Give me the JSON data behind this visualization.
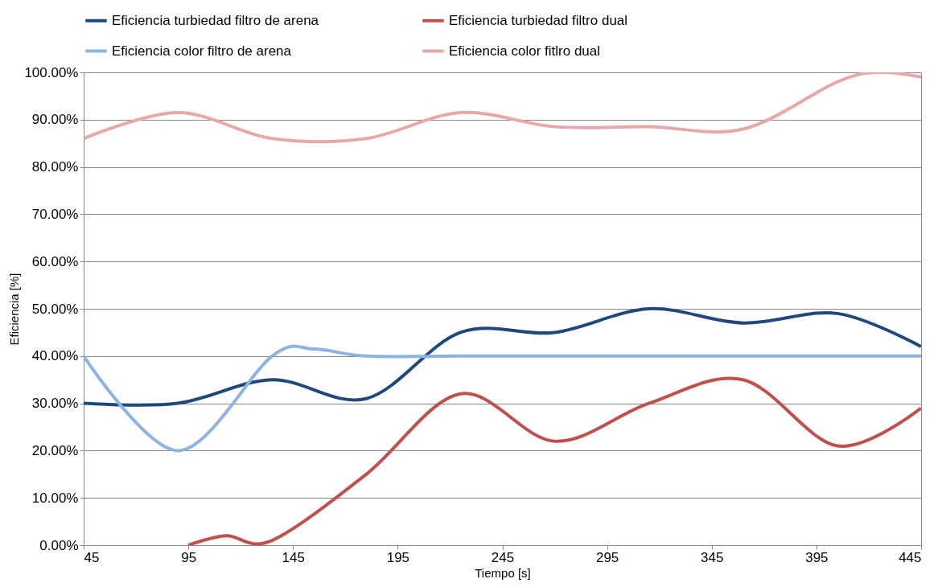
{
  "chart_data": {
    "type": "line",
    "xlabel": "Tiempo [s]",
    "ylabel": "Eficiencia [%]",
    "xlim": [
      45,
      445
    ],
    "xticks": [
      45,
      95,
      145,
      195,
      245,
      295,
      345,
      395,
      445
    ],
    "ylim": [
      0,
      100
    ],
    "yticks": [
      {
        "value": 0,
        "label": "0.00%"
      },
      {
        "value": 10,
        "label": "10.00%"
      },
      {
        "value": 20,
        "label": "20.00%"
      },
      {
        "value": 30,
        "label": "30.00%"
      },
      {
        "value": 40,
        "label": "40.00%"
      },
      {
        "value": 50,
        "label": "50.00%"
      },
      {
        "value": 60,
        "label": "60.00%"
      },
      {
        "value": 70,
        "label": "70.00%"
      },
      {
        "value": 80,
        "label": "80.00%"
      },
      {
        "value": 90,
        "label": "90.00%"
      },
      {
        "value": 100,
        "label": "100.00%"
      }
    ],
    "grid": "y",
    "legend": "top",
    "marker": "none",
    "line_style": "solid",
    "series": [
      {
        "name": "Eficiencia turbiedad filtro de arena",
        "color": "#1f497d",
        "x": [
          45,
          90,
          135,
          180,
          225,
          270,
          315,
          360,
          405,
          445
        ],
        "values": [
          30,
          30,
          35,
          31,
          45,
          45,
          50,
          47,
          49,
          42
        ]
      },
      {
        "name": "Eficiencia turbiedad filtro dual",
        "color": "#c0504d",
        "x": [
          95,
          113,
          135,
          180,
          225,
          270,
          315,
          360,
          405,
          445
        ],
        "values": [
          0,
          2,
          1,
          15,
          32,
          22,
          30,
          35,
          21,
          29
        ]
      },
      {
        "name": "Eficiencia color filtro de arena",
        "color": "#8db3e2",
        "x": [
          45,
          90,
          135,
          155,
          180,
          225,
          270,
          315,
          360,
          405,
          445
        ],
        "values": [
          40,
          20,
          40,
          41.5,
          40,
          40,
          40,
          40,
          40,
          40,
          40
        ]
      },
      {
        "name": "Eficiencia color fitlro dual",
        "color": "#e6a9a8",
        "x": [
          45,
          90,
          135,
          180,
          225,
          270,
          315,
          360,
          405,
          425,
          445
        ],
        "values": [
          86,
          91.5,
          86,
          86,
          91.5,
          88.5,
          88.5,
          88,
          98,
          100,
          99
        ]
      }
    ]
  }
}
